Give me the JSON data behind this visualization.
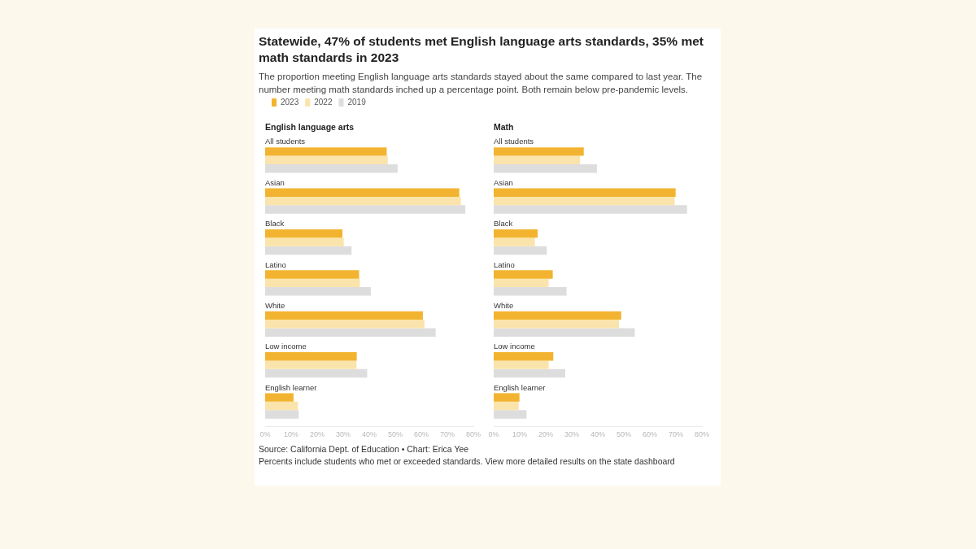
{
  "chart_data": [
    {
      "type": "other",
      "title": "Statewide, 47% of students met English language arts standards, 35% met math standards in 2023",
      "subtitle": "The proportion meeting English language arts standards stayed about the same compared to last year. The number meeting math standards inched up a percentage point. Both remain below pre-pandemic levels.",
      "annotations": [
        "Source: California Dept. of Education • Chart: Erica Yee",
        "Percents include students who met or exceeded standards. View more detailed results on the state dashboard"
      ]
    },
    {
      "type": "bar",
      "orientation": "horizontal",
      "title": "English language arts",
      "categories": [
        "All students",
        "Asian",
        "Black",
        "Latino",
        "White",
        "Low income",
        "English learner"
      ],
      "series": [
        {
          "name": "2023",
          "color": "#f2b430",
          "values": [
            46.7,
            74.6,
            29.7,
            36.1,
            60.6,
            35.2,
            10.9
          ]
        },
        {
          "name": "2022",
          "color": "#fbe4ab",
          "values": [
            47.1,
            75.2,
            30.2,
            36.4,
            61.2,
            35.1,
            12.6
          ]
        },
        {
          "name": "2019",
          "color": "#dddddd",
          "values": [
            50.9,
            76.9,
            33.2,
            40.6,
            65.5,
            39.2,
            12.9
          ]
        }
      ],
      "xlim": [
        0,
        80
      ],
      "xticks": [
        {
          "value": 0,
          "label": "0%"
        },
        {
          "value": 10,
          "label": "10%"
        },
        {
          "value": 20,
          "label": "20%"
        },
        {
          "value": 30,
          "label": "30%"
        },
        {
          "value": 40,
          "label": "40%"
        },
        {
          "value": 50,
          "label": "50%"
        },
        {
          "value": 60,
          "label": "60%"
        },
        {
          "value": 70,
          "label": "70%"
        },
        {
          "value": 80,
          "label": "80%"
        }
      ],
      "grid": false,
      "legend": "top left"
    },
    {
      "type": "bar",
      "orientation": "horizontal",
      "title": "Math",
      "categories": [
        "All students",
        "Asian",
        "Black",
        "Latino",
        "White",
        "Low income",
        "English learner"
      ],
      "series": [
        {
          "name": "2023",
          "color": "#f2b430",
          "values": [
            34.6,
            69.9,
            16.9,
            22.7,
            49.0,
            22.9,
            9.9
          ]
        },
        {
          "name": "2022",
          "color": "#fbe4ab",
          "values": [
            33.2,
            69.5,
            15.8,
            21.1,
            48.1,
            21.1,
            9.6
          ]
        },
        {
          "name": "2019",
          "color": "#dddddd",
          "values": [
            39.7,
            74.3,
            20.4,
            28.0,
            54.2,
            27.5,
            12.6
          ]
        }
      ],
      "xlim": [
        0,
        80
      ],
      "xticks": [
        {
          "value": 0,
          "label": "0%"
        },
        {
          "value": 10,
          "label": "10%"
        },
        {
          "value": 20,
          "label": "20%"
        },
        {
          "value": 30,
          "label": "30%"
        },
        {
          "value": 40,
          "label": "40%"
        },
        {
          "value": 50,
          "label": "50%"
        },
        {
          "value": 60,
          "label": "60%"
        },
        {
          "value": 70,
          "label": "70%"
        },
        {
          "value": 80,
          "label": "80%"
        }
      ],
      "grid": false,
      "legend": false
    }
  ]
}
